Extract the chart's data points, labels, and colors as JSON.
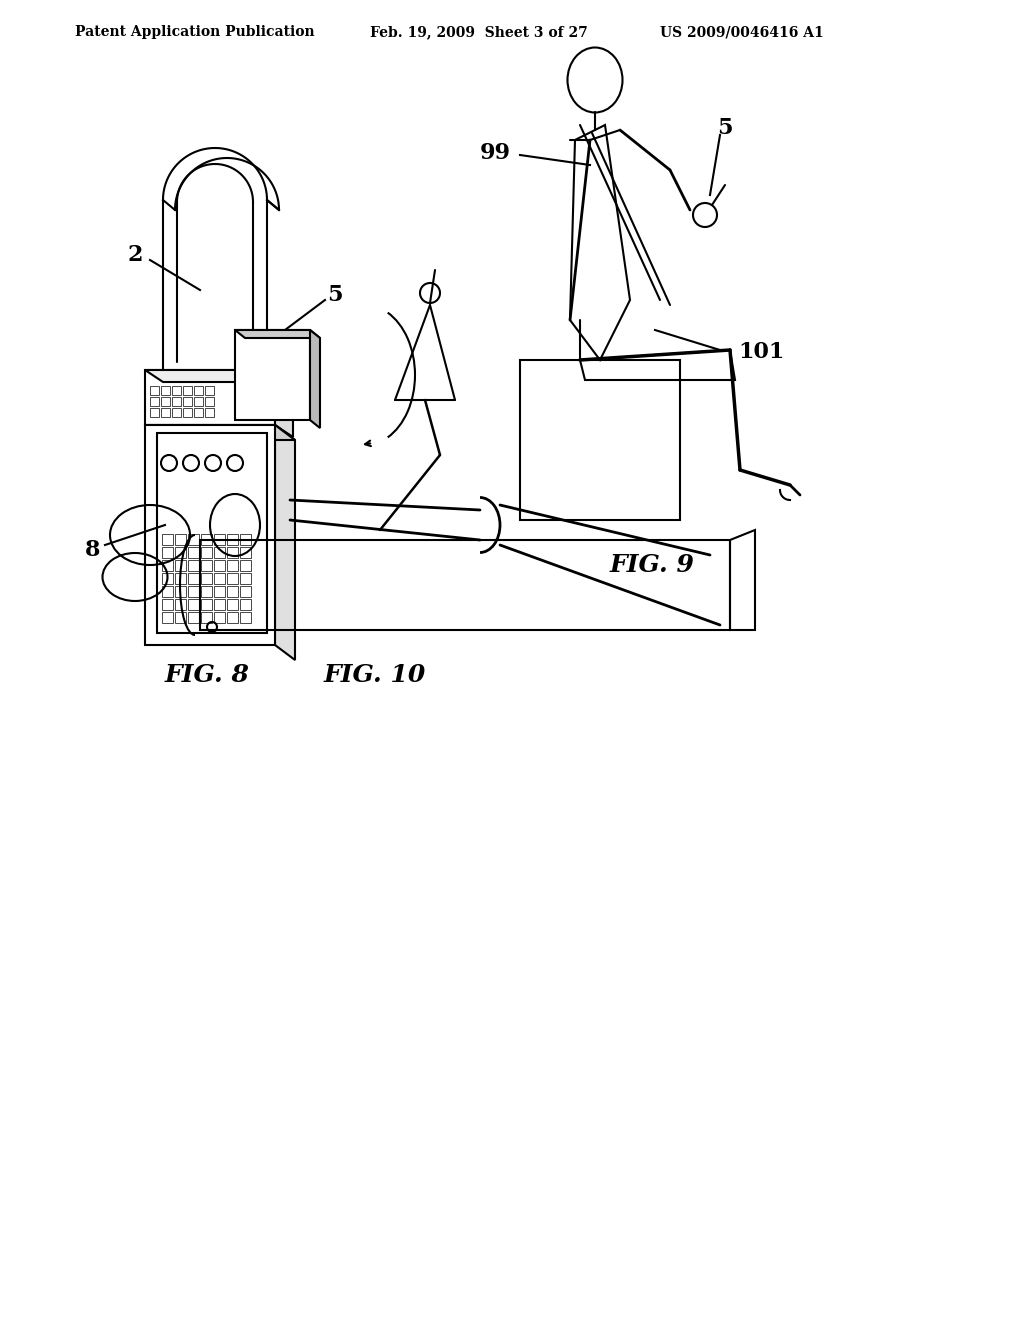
{
  "background_color": "#ffffff",
  "header_left": "Patent Application Publication",
  "header_center": "Feb. 19, 2009  Sheet 3 of 27",
  "header_right": "US 2009/0046416 A1",
  "header_fontsize": 10,
  "fig8_label": "FIG. 8",
  "fig9_label": "FIG. 9",
  "fig10_label": "FIG. 10",
  "label_fontsize": 16,
  "line_color": "#000000",
  "line_width": 1.5,
  "fig8_ref2": "2",
  "fig8_ref5": "5",
  "fig8_ref8": "8",
  "fig9_ref5": "5",
  "fig9_ref99": "99",
  "fig9_ref101": "101"
}
